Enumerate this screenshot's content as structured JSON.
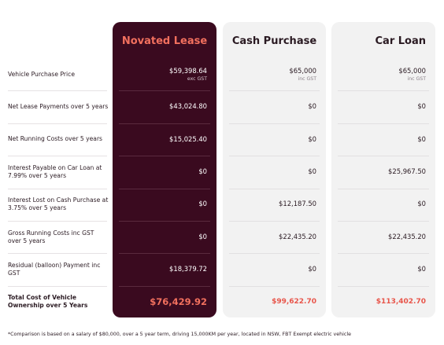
{
  "table": {
    "columns": [
      "Novated Lease",
      "Cash Purchase",
      "Car Loan"
    ],
    "rows": [
      {
        "label": "Vehicle Purchase Price",
        "values": [
          "$59,398.64",
          "$65,000",
          "$65,000"
        ],
        "notes": [
          "exc GST",
          "inc GST",
          "inc GST"
        ]
      },
      {
        "label": "Net Lease Payments over 5 years",
        "values": [
          "$43,024.80",
          "$0",
          "$0"
        ]
      },
      {
        "label": "Net Running Costs over 5 years",
        "values": [
          "$15,025.40",
          "$0",
          "$0"
        ]
      },
      {
        "label": "Interest Payable on Car Loan at 7.99% over 5 years",
        "values": [
          "$0",
          "$0",
          "$25,967.50"
        ]
      },
      {
        "label": "Interest Lost on Cash Purchase at 3.75% over 5 years",
        "values": [
          "$0",
          "$12,187.50",
          "$0"
        ]
      },
      {
        "label": "Gross Running Costs inc GST over 5 years",
        "values": [
          "$0",
          "$22,435.20",
          "$22,435.20"
        ]
      },
      {
        "label": "Residual (balloon) Payment inc GST",
        "values": [
          "$18,379.72",
          "$0",
          "$0"
        ]
      },
      {
        "label": "Total Cost of Vehicle Ownership over 5 Years",
        "values": [
          "$76,429.92",
          "$99,622.70",
          "$113,402.70"
        ]
      }
    ]
  },
  "footnote": "*Comparison is based on a salary of $80,000, over a 5 year term, driving 15,000KM per year, located in NSW, FBT Exempt electric vehicle"
}
